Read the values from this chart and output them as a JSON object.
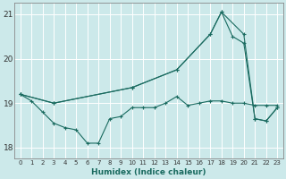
{
  "xlabel": "Humidex (Indice chaleur)",
  "bg_color": "#cce9ea",
  "grid_color": "#ffffff",
  "line_color": "#1a6b60",
  "xlim": [
    -0.5,
    23.5
  ],
  "ylim": [
    17.75,
    21.25
  ],
  "yticks": [
    18,
    19,
    20,
    21
  ],
  "xticks": [
    0,
    1,
    2,
    3,
    4,
    5,
    6,
    7,
    8,
    9,
    10,
    11,
    12,
    13,
    14,
    15,
    16,
    17,
    18,
    19,
    20,
    21,
    22,
    23
  ],
  "series1_x": [
    0,
    1,
    2,
    3,
    4,
    5,
    6,
    7,
    8,
    9,
    10,
    11,
    12,
    13,
    14,
    15,
    16,
    17,
    18,
    19,
    20,
    21,
    22,
    23
  ],
  "series1_y": [
    19.2,
    19.05,
    18.8,
    18.55,
    18.45,
    18.4,
    18.1,
    18.1,
    18.65,
    18.7,
    18.9,
    18.9,
    18.9,
    19.0,
    19.15,
    18.95,
    19.0,
    19.05,
    19.05,
    19.0,
    19.0,
    18.95,
    18.95,
    18.95
  ],
  "series2_x": [
    0,
    3,
    10,
    14,
    17,
    18,
    20,
    21,
    22,
    23
  ],
  "series2_y": [
    19.2,
    19.0,
    19.35,
    19.75,
    20.55,
    21.05,
    20.55,
    18.65,
    18.6,
    18.9
  ],
  "series3_x": [
    0,
    3,
    10,
    14,
    17,
    18,
    19,
    20,
    21,
    22,
    23
  ],
  "series3_y": [
    19.2,
    19.0,
    19.35,
    19.75,
    20.55,
    21.05,
    20.5,
    20.35,
    18.65,
    18.6,
    18.9
  ]
}
